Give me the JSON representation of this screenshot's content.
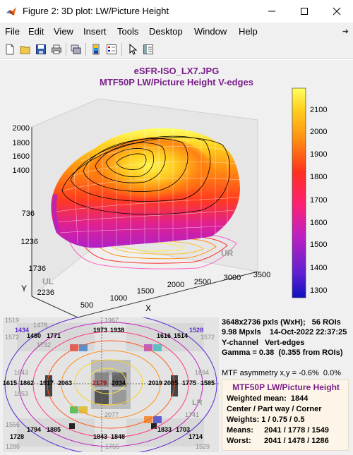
{
  "window": {
    "title": "Figure 2: 3D plot: LW/Picture Height",
    "minimize": "—",
    "maximize": "☐",
    "close": "✕"
  },
  "menu": [
    "File",
    "Edit",
    "View",
    "Insert",
    "Tools",
    "Desktop",
    "Window",
    "Help"
  ],
  "toolbar_icons": [
    "new-figure-icon",
    "open-file-icon",
    "save-icon",
    "print-icon",
    "link-icon",
    "colorbar-icon",
    "legend-icon",
    "pointer-icon",
    "property-editor-icon"
  ],
  "plot": {
    "title_line1": "eSFR-ISO_LX7.JPG",
    "title_line2": "MTF50P LW/Picture Height   V-edges",
    "z_ticks": [
      "2000",
      "1800",
      "1600",
      "1400"
    ],
    "y_ticks": [
      "736",
      "1236",
      "1736",
      "2236"
    ],
    "x_ticks": [
      "500",
      "1000",
      "1500",
      "2000",
      "2500",
      "3000",
      "3500"
    ],
    "y_label": "Y",
    "x_label": "X",
    "corner_ul": "UL",
    "corner_ur": "UR",
    "corner_lr": "LR",
    "colorbar_ticks": [
      "2100",
      "2000",
      "1900",
      "1800",
      "1700",
      "1600",
      "1500",
      "1400",
      "1300"
    ]
  },
  "chart_image": {
    "labels": [
      {
        "text": "1519",
        "c": "#888"
      },
      {
        "text": "1434",
        "c": "#5a2ad0"
      },
      {
        "text": "1478",
        "c": "#888"
      },
      {
        "text": "1480",
        "c": "#000"
      },
      {
        "text": "1771",
        "c": "#000"
      },
      {
        "text": "1572",
        "c": "#888"
      },
      {
        "text": "1732",
        "c": "#888"
      },
      {
        "text": "1967",
        "c": "#888"
      },
      {
        "text": "1973",
        "c": "#000"
      },
      {
        "text": "1938",
        "c": "#000"
      },
      {
        "text": "1616",
        "c": "#000"
      },
      {
        "text": "1514",
        "c": "#000"
      },
      {
        "text": "1528",
        "c": "#5a2ad0"
      },
      {
        "text": "1572",
        "c": "#888"
      },
      {
        "text": "1643",
        "c": "#888"
      },
      {
        "text": "2026",
        "c": "#888"
      },
      {
        "text": "1694",
        "c": "#888"
      },
      {
        "text": "1615",
        "c": "#000"
      },
      {
        "text": "1862",
        "c": "#000"
      },
      {
        "text": "1917",
        "c": "#000"
      },
      {
        "text": "2063",
        "c": "#000"
      },
      {
        "text": "2179",
        "c": "#c00000"
      },
      {
        "text": "2034",
        "c": "#000"
      },
      {
        "text": "2019",
        "c": "#000"
      },
      {
        "text": "2005",
        "c": "#000"
      },
      {
        "text": "1775",
        "c": "#000"
      },
      {
        "text": "1585",
        "c": "#000"
      },
      {
        "text": "1653",
        "c": "#888"
      },
      {
        "text": "2077",
        "c": "#888"
      },
      {
        "text": "1741",
        "c": "#888"
      },
      {
        "text": "1566",
        "c": "#888"
      },
      {
        "text": "1794",
        "c": "#000"
      },
      {
        "text": "1885",
        "c": "#000"
      },
      {
        "text": "1833",
        "c": "#000"
      },
      {
        "text": "1703",
        "c": "#000"
      },
      {
        "text": "1728",
        "c": "#000"
      },
      {
        "text": "1843",
        "c": "#000"
      },
      {
        "text": "1848",
        "c": "#000"
      },
      {
        "text": "1714",
        "c": "#000"
      },
      {
        "text": "1286",
        "c": "#888"
      },
      {
        "text": "1755",
        "c": "#888"
      },
      {
        "text": "1529",
        "c": "#888"
      }
    ]
  },
  "info": {
    "line1": "3648x2736 pxls (WxH);   56 ROIs",
    "line2": "9.98 Mpxls    14-Oct-2022 22:37:25",
    "line3": "Y-channel   Vert-edges",
    "line4": "Gamma = 0.38  (0.355 from ROIs)",
    "asymmetry": "MTF asymmetry x,y = -0.6%  0.0%"
  },
  "summary": {
    "title": "MTF50P LW/Picture Height",
    "line1": "Weighted mean:  1844",
    "line2": "Center / Part way / Corner",
    "line3": "Weights: 1 / 0.75 / 0.5",
    "line4": "Means:     2041 / 1778 / 1549",
    "line5": "Worst:      2041 / 1478 / 1286"
  }
}
